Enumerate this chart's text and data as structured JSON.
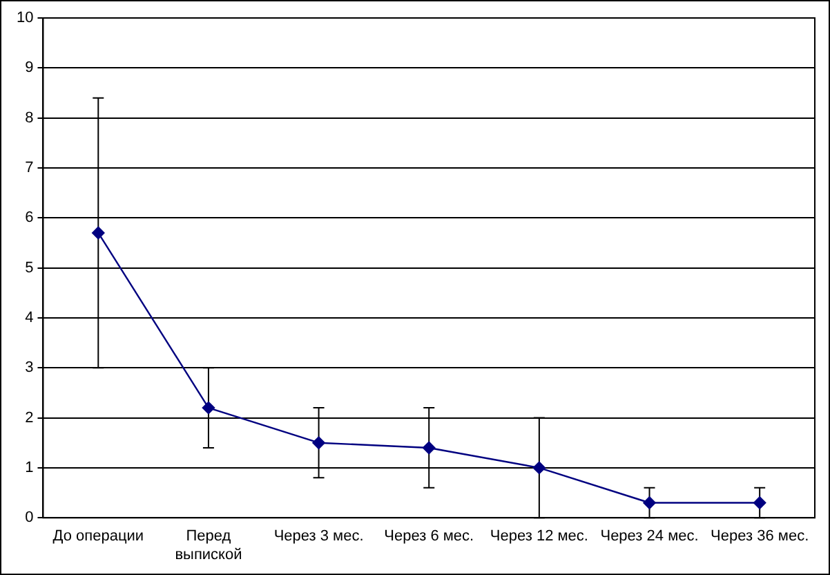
{
  "chart_data": {
    "type": "line",
    "categories": [
      "До операции",
      "Перед выпиской",
      "Через 3 мес.",
      "Через 6 мес.",
      "Через 12 мес.",
      "Через 24 мес.",
      "Через 36 мес."
    ],
    "series": [
      {
        "color": "#000080",
        "values": [
          5.7,
          2.2,
          1.5,
          1.4,
          1.0,
          0.3,
          0.3
        ],
        "errors": [
          [
            3.0,
            8.4
          ],
          [
            1.4,
            3.0
          ],
          [
            0.8,
            2.2
          ],
          [
            0.6,
            2.2
          ],
          [
            0,
            2.0
          ],
          [
            0,
            0.6
          ],
          [
            0,
            0.6
          ]
        ]
      }
    ],
    "ylim": [
      0,
      10
    ],
    "yticks": [
      0,
      1,
      2,
      3,
      4,
      5,
      6,
      7,
      8,
      9,
      10
    ],
    "grid": "y",
    "legend": false,
    "marker": "diamond",
    "line_style": "solid"
  }
}
